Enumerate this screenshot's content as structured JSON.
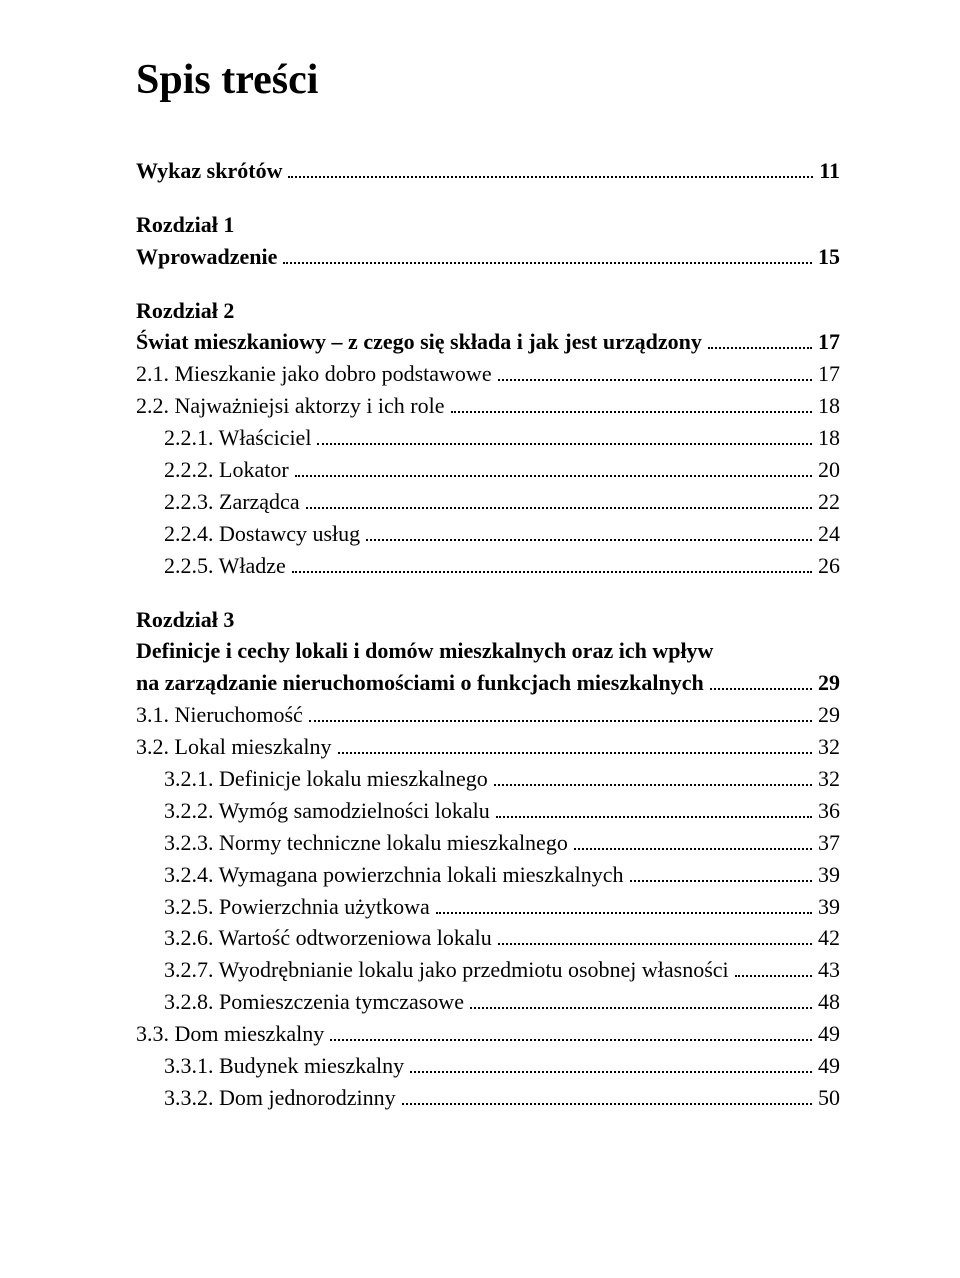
{
  "title": "Spis treści",
  "entries": [
    {
      "label": "Wykaz skrótów",
      "page": "11",
      "bold": true,
      "indent": 0,
      "dots": true
    },
    {
      "spacer": true
    },
    {
      "label": "Rozdział 1",
      "bold": true,
      "indent": 0,
      "dots": false
    },
    {
      "label": "Wprowadzenie",
      "page": "15",
      "bold": true,
      "indent": 0,
      "dots": true
    },
    {
      "spacer": true
    },
    {
      "label": "Rozdział 2",
      "bold": true,
      "indent": 0,
      "dots": false
    },
    {
      "label": "Świat mieszkaniowy – z czego się składa i jak jest urządzony",
      "page": "17",
      "bold": true,
      "indent": 0,
      "dots": true
    },
    {
      "label": "2.1. Mieszkanie jako dobro podstawowe",
      "page": "17",
      "indent": 0,
      "dots": true
    },
    {
      "label": "2.2. Najważniejsi aktorzy i ich role",
      "page": "18",
      "indent": 0,
      "dots": true
    },
    {
      "label": "2.2.1. Właściciel",
      "page": "18",
      "indent": 1,
      "dots": true
    },
    {
      "label": "2.2.2. Lokator",
      "page": "20",
      "indent": 1,
      "dots": true
    },
    {
      "label": "2.2.3. Zarządca",
      "page": "22",
      "indent": 1,
      "dots": true
    },
    {
      "label": "2.2.4. Dostawcy usług",
      "page": "24",
      "indent": 1,
      "dots": true
    },
    {
      "label": "2.2.5. Władze",
      "page": "26",
      "indent": 1,
      "dots": true
    },
    {
      "spacer": true
    },
    {
      "label": "Rozdział 3",
      "bold": true,
      "indent": 0,
      "dots": false
    },
    {
      "label": "Definicje i cechy lokali i domów mieszkalnych oraz ich wpływ",
      "bold": true,
      "indent": 0,
      "dots": false,
      "cont": true
    },
    {
      "label": "na zarządzanie nieruchomościami o funkcjach mieszkalnych",
      "page": "29",
      "bold": true,
      "indent": 0,
      "dots": true
    },
    {
      "label": "3.1. Nieruchomość",
      "page": "29",
      "indent": 0,
      "dots": true
    },
    {
      "label": "3.2. Lokal mieszkalny",
      "page": "32",
      "indent": 0,
      "dots": true
    },
    {
      "label": "3.2.1. Definicje lokalu mieszkalnego",
      "page": "32",
      "indent": 1,
      "dots": true
    },
    {
      "label": "3.2.2. Wymóg samodzielności lokalu",
      "page": "36",
      "indent": 1,
      "dots": true
    },
    {
      "label": "3.2.3. Normy techniczne lokalu mieszkalnego",
      "page": "37",
      "indent": 1,
      "dots": true
    },
    {
      "label": "3.2.4. Wymagana powierzchnia lokali mieszkalnych",
      "page": "39",
      "indent": 1,
      "dots": true
    },
    {
      "label": "3.2.5. Powierzchnia użytkowa",
      "page": "39",
      "indent": 1,
      "dots": true
    },
    {
      "label": "3.2.6. Wartość odtworzeniowa lokalu",
      "page": "42",
      "indent": 1,
      "dots": true
    },
    {
      "label": "3.2.7. Wyodrębnianie lokalu jako przedmiotu osobnej własności",
      "page": "43",
      "indent": 1,
      "dots": true
    },
    {
      "label": "3.2.8. Pomieszczenia tymczasowe",
      "page": "48",
      "indent": 1,
      "dots": true
    },
    {
      "label": "3.3. Dom mieszkalny",
      "page": "49",
      "indent": 0,
      "dots": true
    },
    {
      "label": "3.3.1. Budynek mieszkalny",
      "page": "49",
      "indent": 1,
      "dots": true
    },
    {
      "label": "3.3.2. Dom jednorodzinny",
      "page": "50",
      "indent": 1,
      "dots": true
    }
  ]
}
